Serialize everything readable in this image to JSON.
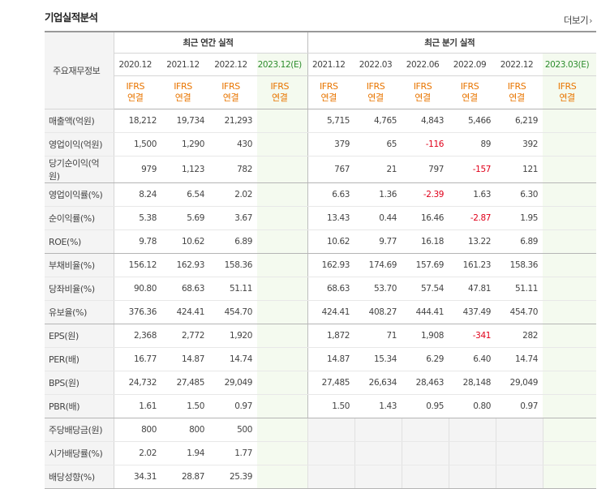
{
  "title": "기업실적분석",
  "more_label": "더보기",
  "more_chevron": "›",
  "row_header_label": "주요재무정보",
  "groups": [
    {
      "label": "최근 연간 실적"
    },
    {
      "label": "최근 분기 실적"
    }
  ],
  "periods": [
    {
      "label": "2020.12",
      "ifrs1": "IFRS",
      "ifrs2": "연결"
    },
    {
      "label": "2021.12",
      "ifrs1": "IFRS",
      "ifrs2": "연결"
    },
    {
      "label": "2022.12",
      "ifrs1": "IFRS",
      "ifrs2": "연결"
    },
    {
      "label": "2023.12(E)",
      "ifrs1": "IFRS",
      "ifrs2": "연결"
    },
    {
      "label": "2021.12",
      "ifrs1": "IFRS",
      "ifrs2": "연결"
    },
    {
      "label": "2022.03",
      "ifrs1": "IFRS",
      "ifrs2": "연결"
    },
    {
      "label": "2022.06",
      "ifrs1": "IFRS",
      "ifrs2": "연결"
    },
    {
      "label": "2022.09",
      "ifrs1": "IFRS",
      "ifrs2": "연결"
    },
    {
      "label": "2022.12",
      "ifrs1": "IFRS",
      "ifrs2": "연결"
    },
    {
      "label": "2023.03(E)",
      "ifrs1": "IFRS",
      "ifrs2": "연결"
    }
  ],
  "colors": {
    "accent": "#e87500",
    "negative": "#e0001a",
    "estimate": "#2d8d2d"
  },
  "rows": [
    {
      "label": "매출액(억원)",
      "values": [
        "18,212",
        "19,734",
        "21,293",
        "",
        "5,715",
        "4,765",
        "4,843",
        "5,466",
        "6,219",
        ""
      ]
    },
    {
      "label": "영업이익(억원)",
      "values": [
        "1,500",
        "1,290",
        "430",
        "",
        "379",
        "65",
        "-116",
        "89",
        "392",
        ""
      ]
    },
    {
      "label": "당기순이익(억원)",
      "values": [
        "979",
        "1,123",
        "782",
        "",
        "767",
        "21",
        "797",
        "-157",
        "121",
        ""
      ]
    },
    {
      "label": "영업이익률(%)",
      "values": [
        "8.24",
        "6.54",
        "2.02",
        "",
        "6.63",
        "1.36",
        "-2.39",
        "1.63",
        "6.30",
        ""
      ]
    },
    {
      "label": "순이익률(%)",
      "values": [
        "5.38",
        "5.69",
        "3.67",
        "",
        "13.43",
        "0.44",
        "16.46",
        "-2.87",
        "1.95",
        ""
      ]
    },
    {
      "label": "ROE(%)",
      "values": [
        "9.78",
        "10.62",
        "6.89",
        "",
        "10.62",
        "9.77",
        "16.18",
        "13.22",
        "6.89",
        ""
      ]
    },
    {
      "label": "부채비율(%)",
      "values": [
        "156.12",
        "162.93",
        "158.36",
        "",
        "162.93",
        "174.69",
        "157.69",
        "161.23",
        "158.36",
        ""
      ]
    },
    {
      "label": "당좌비율(%)",
      "values": [
        "90.80",
        "68.63",
        "51.11",
        "",
        "68.63",
        "53.70",
        "57.54",
        "47.81",
        "51.11",
        ""
      ]
    },
    {
      "label": "유보율(%)",
      "values": [
        "376.36",
        "424.41",
        "454.70",
        "",
        "424.41",
        "408.27",
        "444.41",
        "437.49",
        "454.70",
        ""
      ]
    },
    {
      "label": "EPS(원)",
      "values": [
        "2,368",
        "2,772",
        "1,920",
        "",
        "1,872",
        "71",
        "1,908",
        "-341",
        "282",
        ""
      ]
    },
    {
      "label": "PER(배)",
      "values": [
        "16.77",
        "14.87",
        "14.74",
        "",
        "14.87",
        "15.34",
        "6.29",
        "6.40",
        "14.74",
        ""
      ]
    },
    {
      "label": "BPS(원)",
      "values": [
        "24,732",
        "27,485",
        "29,049",
        "",
        "27,485",
        "26,634",
        "28,463",
        "28,148",
        "29,049",
        ""
      ]
    },
    {
      "label": "PBR(배)",
      "values": [
        "1.61",
        "1.50",
        "0.97",
        "",
        "1.50",
        "1.43",
        "0.95",
        "0.80",
        "0.97",
        ""
      ]
    },
    {
      "label": "주당배당금(원)",
      "values": [
        "800",
        "800",
        "500",
        "",
        "",
        "",
        "",
        "",
        "",
        ""
      ]
    },
    {
      "label": "시가배당률(%)",
      "values": [
        "2.02",
        "1.94",
        "1.77",
        "",
        "",
        "",
        "",
        "",
        "",
        ""
      ]
    },
    {
      "label": "배당성향(%)",
      "values": [
        "34.31",
        "28.87",
        "25.39",
        "",
        "",
        "",
        "",
        "",
        "",
        ""
      ]
    }
  ]
}
